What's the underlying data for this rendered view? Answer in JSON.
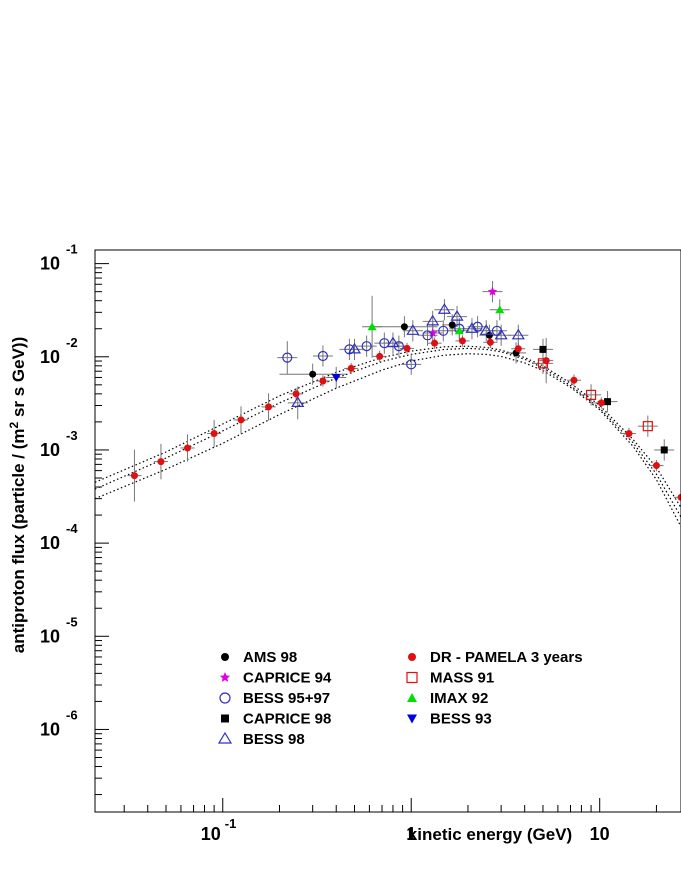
{
  "chart_data": {
    "type": "scatter",
    "title": "",
    "xlabel": "kinetic energy (GeV)",
    "ylabel": "antiproton flux (particle / (m² sr s GeV))",
    "ylabel_parts": [
      "antiproton flux (particle / (m",
      "2",
      " sr s GeV))"
    ],
    "xscale": "log",
    "yscale": "log",
    "xlim": [
      0.021,
      27
    ],
    "ylim": [
      1.3e-07,
      0.14
    ],
    "x_ticks": [
      {
        "value": 0.1,
        "base": "10",
        "exp": "-1"
      },
      {
        "value": 1,
        "base": "1",
        "exp": ""
      },
      {
        "value": 10,
        "base": "10",
        "exp": ""
      }
    ],
    "y_ticks": [
      {
        "value": 0.1,
        "base": "10",
        "exp": "-1"
      },
      {
        "value": 0.01,
        "base": "10",
        "exp": "-2"
      },
      {
        "value": 0.001,
        "base": "10",
        "exp": "-3"
      },
      {
        "value": 0.0001,
        "base": "10",
        "exp": "-4"
      },
      {
        "value": 1e-05,
        "base": "10",
        "exp": "-5"
      },
      {
        "value": 1e-06,
        "base": "10",
        "exp": "-6"
      }
    ],
    "grid": false,
    "legend_position": "bottom-center",
    "model_curves": [
      {
        "style": "dotted",
        "x": [
          0.021,
          0.05,
          0.1,
          0.2,
          0.4,
          0.7,
          1,
          1.5,
          2,
          2.5,
          3,
          4,
          5,
          7,
          10,
          15,
          20,
          27
        ],
        "y": [
          0.00045,
          0.00095,
          0.0019,
          0.0038,
          0.0068,
          0.0098,
          0.0115,
          0.0128,
          0.013,
          0.0126,
          0.0118,
          0.0098,
          0.008,
          0.0052,
          0.003,
          0.0013,
          0.00065,
          0.00024
        ]
      },
      {
        "style": "dotted",
        "x": [
          0.021,
          0.05,
          0.1,
          0.2,
          0.4,
          0.7,
          1,
          1.5,
          2,
          2.5,
          3,
          4,
          5,
          7,
          10,
          15,
          20,
          27
        ],
        "y": [
          0.00038,
          0.00082,
          0.0016,
          0.0032,
          0.0059,
          0.0089,
          0.0106,
          0.012,
          0.0123,
          0.012,
          0.0113,
          0.0094,
          0.0076,
          0.0049,
          0.0028,
          0.0012,
          0.00055,
          0.00019
        ]
      },
      {
        "style": "dotted",
        "x": [
          0.021,
          0.05,
          0.1,
          0.2,
          0.4,
          0.7,
          1,
          1.5,
          2,
          2.5,
          3,
          4,
          5,
          7,
          10,
          15,
          20,
          27
        ],
        "y": [
          0.0003,
          0.00062,
          0.00118,
          0.0024,
          0.0046,
          0.0072,
          0.009,
          0.0104,
          0.0108,
          0.0106,
          0.0101,
          0.0086,
          0.0071,
          0.0047,
          0.0027,
          0.0011,
          0.00048,
          0.00015
        ]
      }
    ],
    "series": [
      {
        "name": "AMS 98",
        "marker": "circle-filled",
        "color": "#000000",
        "points": [
          {
            "x": 0.3,
            "y": 0.0065
          },
          {
            "x": 0.92,
            "y": 0.021
          },
          {
            "x": 1.65,
            "y": 0.022
          },
          {
            "x": 2.6,
            "y": 0.017
          },
          {
            "x": 3.6,
            "y": 0.011
          }
        ]
      },
      {
        "name": "CAPRICE 94",
        "marker": "star",
        "color": "#e000e0",
        "points": [
          {
            "x": 1.3,
            "y": 0.018
          },
          {
            "x": 2.7,
            "y": 0.05
          }
        ]
      },
      {
        "name": "BESS 95+97",
        "marker": "circle-open",
        "color": "#3030c0",
        "points": [
          {
            "x": 0.22,
            "y": 0.0098
          },
          {
            "x": 0.34,
            "y": 0.0102
          },
          {
            "x": 0.47,
            "y": 0.012
          },
          {
            "x": 0.58,
            "y": 0.013
          },
          {
            "x": 0.72,
            "y": 0.014
          },
          {
            "x": 0.86,
            "y": 0.013
          },
          {
            "x": 1.0,
            "y": 0.0083
          },
          {
            "x": 1.22,
            "y": 0.017
          },
          {
            "x": 1.48,
            "y": 0.019
          },
          {
            "x": 1.8,
            "y": 0.02
          },
          {
            "x": 2.25,
            "y": 0.021
          },
          {
            "x": 2.85,
            "y": 0.019
          }
        ]
      },
      {
        "name": "CAPRICE 98",
        "marker": "square-filled",
        "color": "#000000",
        "points": [
          {
            "x": 5.0,
            "y": 0.012
          },
          {
            "x": 11.0,
            "y": 0.0033
          },
          {
            "x": 22.0,
            "y": 0.001
          }
        ]
      },
      {
        "name": "BESS 98",
        "marker": "triangle-open",
        "color": "#3030c0",
        "points": [
          {
            "x": 0.25,
            "y": 0.0032
          },
          {
            "x": 0.5,
            "y": 0.012
          },
          {
            "x": 0.8,
            "y": 0.014
          },
          {
            "x": 1.02,
            "y": 0.019
          },
          {
            "x": 1.3,
            "y": 0.024
          },
          {
            "x": 1.5,
            "y": 0.032
          },
          {
            "x": 1.75,
            "y": 0.027
          },
          {
            "x": 2.1,
            "y": 0.02
          },
          {
            "x": 2.5,
            "y": 0.019
          },
          {
            "x": 3.0,
            "y": 0.017
          },
          {
            "x": 3.7,
            "y": 0.017
          }
        ]
      },
      {
        "name": "DR - PAMELA 3 years",
        "marker": "circle-filled",
        "color": "#e01010",
        "points": [
          {
            "x": 0.034,
            "y": 0.00053
          },
          {
            "x": 0.047,
            "y": 0.00075
          },
          {
            "x": 0.065,
            "y": 0.00105
          },
          {
            "x": 0.09,
            "y": 0.0015
          },
          {
            "x": 0.125,
            "y": 0.0021
          },
          {
            "x": 0.175,
            "y": 0.0029
          },
          {
            "x": 0.245,
            "y": 0.004
          },
          {
            "x": 0.34,
            "y": 0.0055
          },
          {
            "x": 0.48,
            "y": 0.0075
          },
          {
            "x": 0.68,
            "y": 0.0101
          },
          {
            "x": 0.95,
            "y": 0.0123
          },
          {
            "x": 1.33,
            "y": 0.014
          },
          {
            "x": 1.87,
            "y": 0.0148
          },
          {
            "x": 2.63,
            "y": 0.0143
          },
          {
            "x": 3.7,
            "y": 0.0122
          },
          {
            "x": 5.2,
            "y": 0.0091
          },
          {
            "x": 7.3,
            "y": 0.0056
          },
          {
            "x": 10.2,
            "y": 0.0032
          },
          {
            "x": 14.3,
            "y": 0.0015
          },
          {
            "x": 20.0,
            "y": 0.00068
          },
          {
            "x": 27.0,
            "y": 0.00031
          }
        ]
      },
      {
        "name": "MASS 91",
        "marker": "square-open",
        "color": "#e01010",
        "points": [
          {
            "x": 5.0,
            "y": 0.0085
          },
          {
            "x": 9.0,
            "y": 0.0039
          },
          {
            "x": 18.0,
            "y": 0.0018
          }
        ]
      },
      {
        "name": "IMAX 92",
        "marker": "triangle-filled",
        "color": "#00e000",
        "points": [
          {
            "x": 0.62,
            "y": 0.021
          },
          {
            "x": 1.8,
            "y": 0.019
          },
          {
            "x": 2.95,
            "y": 0.032
          }
        ]
      },
      {
        "name": "BESS 93",
        "marker": "triangle-down-filled",
        "color": "#0000e0",
        "points": [
          {
            "x": 0.4,
            "y": 0.006
          }
        ]
      }
    ],
    "legend_columns": [
      [
        "AMS 98",
        "CAPRICE 94",
        "BESS 95+97",
        "CAPRICE 98",
        "BESS 98"
      ],
      [
        "DR - PAMELA 3 years",
        "MASS 91",
        "IMAX 92",
        "BESS 93"
      ]
    ]
  }
}
